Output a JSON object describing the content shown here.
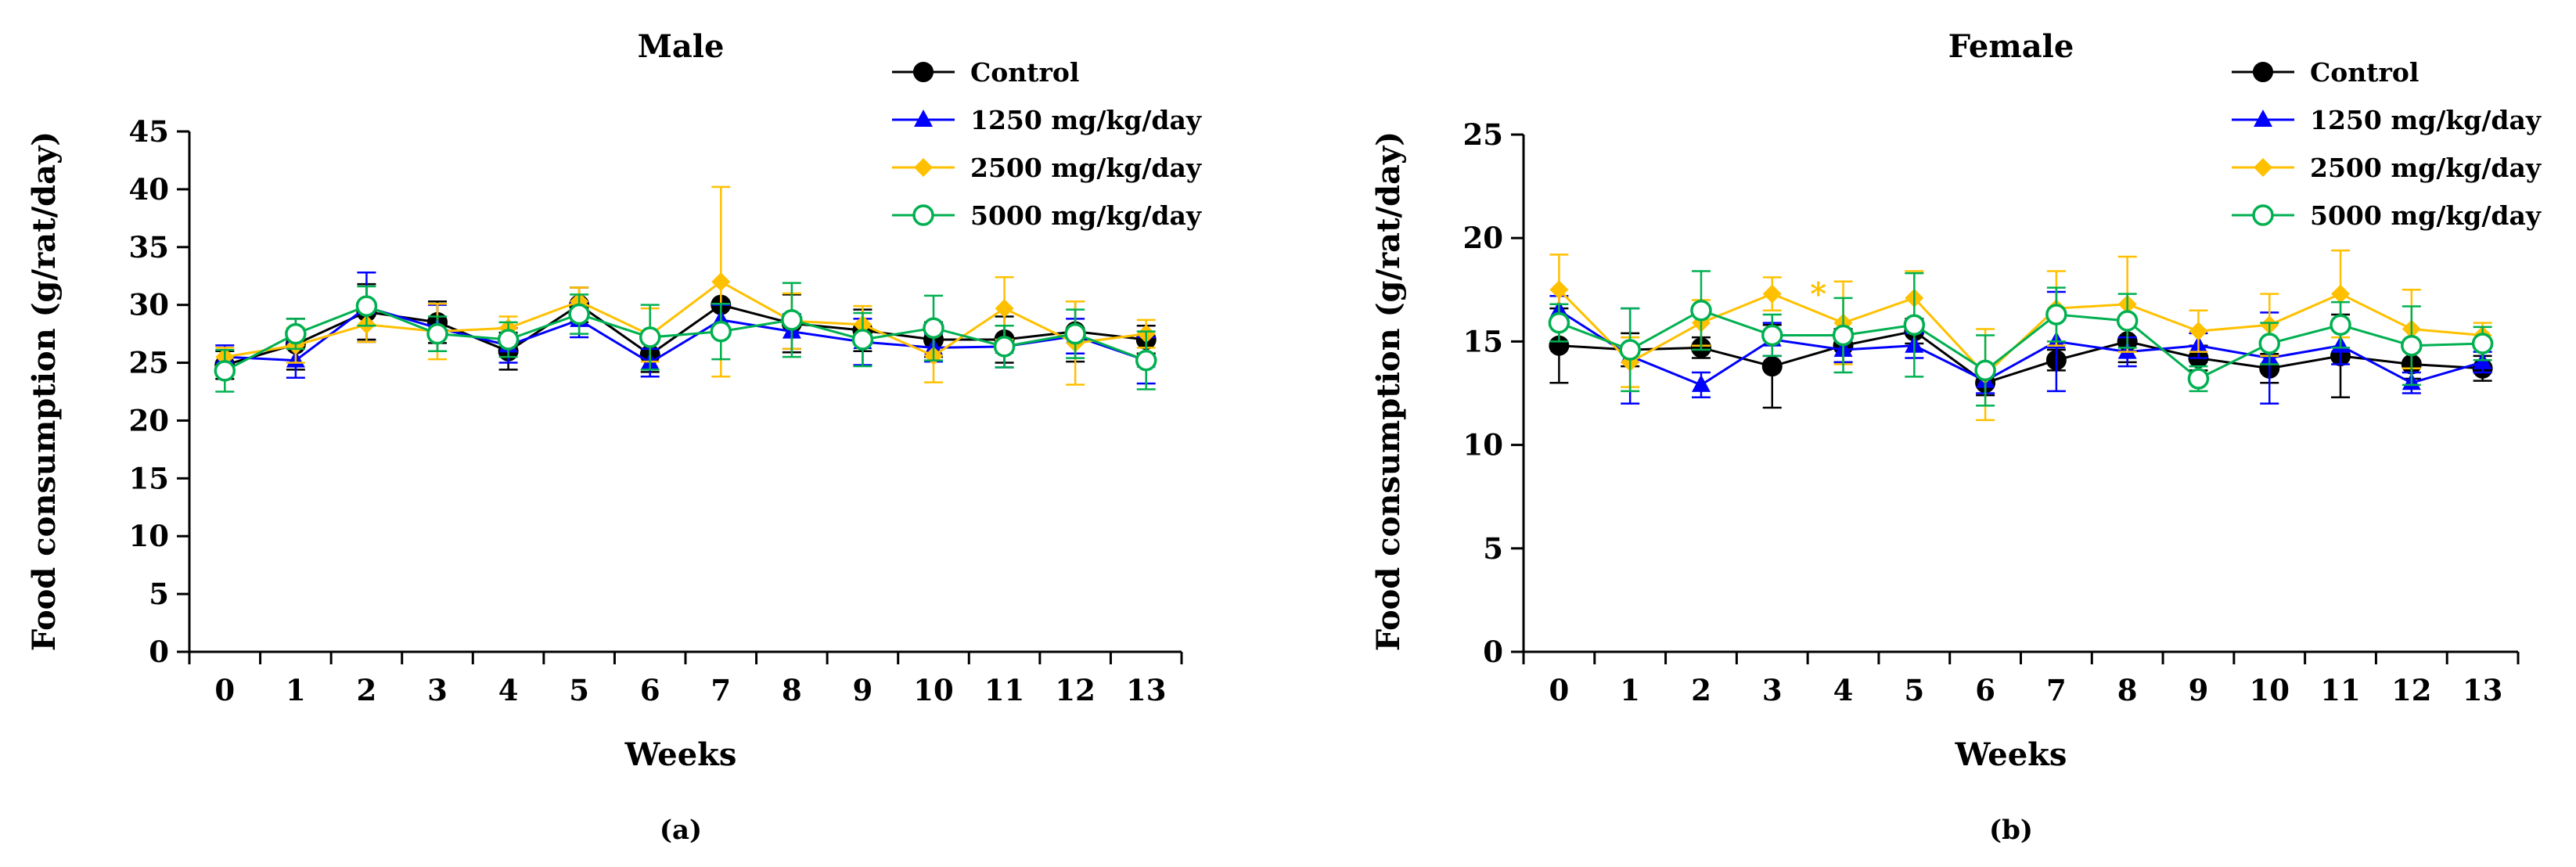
{
  "figure": {
    "labels": [
      "(a)",
      "(b)"
    ]
  },
  "chart_data": [
    {
      "type": "line",
      "title": "Male",
      "xlabel": "Weeks",
      "ylabel": "Food consumption (g/rat/day)",
      "x": [
        0,
        1,
        2,
        3,
        4,
        5,
        6,
        7,
        8,
        9,
        10,
        11,
        12,
        13
      ],
      "xlim": [
        -0.5,
        13.5
      ],
      "ylim": [
        0,
        45
      ],
      "yticks": [
        0,
        5,
        10,
        15,
        20,
        25,
        30,
        35,
        40,
        45
      ],
      "grid": false,
      "legend_position": "top-right",
      "annotations": [],
      "series": [
        {
          "name": "Control",
          "color": "#000000",
          "marker": "filled-circle",
          "values": [
            24.8,
            26.6,
            29.4,
            28.5,
            26.0,
            30.0,
            25.7,
            30.0,
            28.4,
            27.8,
            27.0,
            27.0,
            27.7,
            27.0
          ],
          "errors": [
            1.2,
            2.2,
            2.4,
            1.8,
            1.6,
            1.5,
            1.5,
            0.0,
            2.5,
            1.8,
            1.5,
            2.0,
            2.6,
            1.2
          ]
        },
        {
          "name": "1250 mg/kg/day",
          "color": "#0000ff",
          "marker": "filled-triangle",
          "values": [
            25.5,
            25.2,
            29.8,
            28.0,
            26.5,
            28.7,
            25.0,
            28.7,
            27.7,
            26.8,
            26.3,
            26.4,
            27.3,
            25.2
          ],
          "errors": [
            1.0,
            1.5,
            3.0,
            2.0,
            1.5,
            1.5,
            1.2,
            1.3,
            1.5,
            2.0,
            1.2,
            1.8,
            1.5,
            2.0
          ]
        },
        {
          "name": "2500 mg/kg/day",
          "color": "#ffc000",
          "marker": "filled-diamond",
          "values": [
            25.5,
            26.5,
            28.3,
            27.7,
            28.0,
            30.3,
            27.4,
            32.0,
            28.6,
            28.3,
            25.6,
            29.7,
            26.7,
            27.5
          ],
          "errors": [
            0.8,
            1.5,
            1.5,
            2.4,
            1.0,
            1.2,
            2.3,
            8.2,
            2.4,
            1.6,
            2.3,
            2.7,
            3.6,
            1.2
          ]
        },
        {
          "name": "5000 mg/kg/day",
          "color": "#00b050",
          "marker": "open-circle",
          "values": [
            24.3,
            27.5,
            29.9,
            27.5,
            27.0,
            29.2,
            27.2,
            27.7,
            28.7,
            27.0,
            28.0,
            26.4,
            27.5,
            25.2
          ],
          "errors": [
            1.8,
            1.3,
            1.7,
            1.5,
            1.5,
            1.7,
            2.8,
            2.4,
            3.2,
            2.3,
            2.8,
            1.8,
            2.1,
            2.5
          ]
        }
      ]
    },
    {
      "type": "line",
      "title": "Female",
      "xlabel": "Weeks",
      "ylabel": "Food consumption (g/rat/day)",
      "x": [
        0,
        1,
        2,
        3,
        4,
        5,
        6,
        7,
        8,
        9,
        10,
        11,
        12,
        13
      ],
      "xlim": [
        -0.5,
        13.5
      ],
      "ylim": [
        0,
        25
      ],
      "yticks": [
        0,
        5,
        10,
        15,
        20,
        25
      ],
      "grid": false,
      "legend_position": "top-right",
      "annotations": [
        {
          "text": "*",
          "x": 3.65,
          "y": 17.3,
          "color": "#ffc000"
        }
      ],
      "series": [
        {
          "name": "Control",
          "color": "#000000",
          "marker": "filled-circle",
          "values": [
            14.8,
            14.6,
            14.7,
            13.8,
            14.8,
            15.5,
            13.0,
            14.1,
            15.0,
            14.2,
            13.7,
            14.3,
            13.9,
            13.7
          ],
          "errors": [
            1.8,
            0.8,
            0.5,
            2.0,
            0.8,
            0.6,
            0.6,
            0.5,
            1.0,
            0.6,
            0.7,
            2.0,
            0.7,
            0.6
          ]
        },
        {
          "name": "1250 mg/kg/day",
          "color": "#0000ff",
          "marker": "filled-triangle",
          "values": [
            16.5,
            14.3,
            12.9,
            15.1,
            14.6,
            14.8,
            13.1,
            15.0,
            14.5,
            14.8,
            14.2,
            14.8,
            13.0,
            14.0
          ],
          "errors": [
            0.7,
            2.3,
            0.6,
            0.8,
            0.6,
            0.6,
            0.6,
            2.4,
            0.7,
            0.6,
            2.2,
            0.9,
            0.5,
            0.5
          ]
        },
        {
          "name": "2500 mg/kg/day",
          "color": "#ffc000",
          "marker": "filled-diamond",
          "values": [
            17.5,
            14.0,
            15.9,
            17.3,
            15.9,
            17.1,
            13.4,
            16.6,
            16.8,
            15.5,
            15.8,
            17.3,
            15.6,
            15.3
          ],
          "errors": [
            1.7,
            1.2,
            1.1,
            0.8,
            2.0,
            1.3,
            2.2,
            1.8,
            2.3,
            1.0,
            1.5,
            2.1,
            1.9,
            0.6
          ]
        },
        {
          "name": "5000 mg/kg/day",
          "color": "#00b050",
          "marker": "open-circle",
          "values": [
            15.9,
            14.6,
            16.5,
            15.3,
            15.3,
            15.8,
            13.6,
            16.3,
            16.0,
            13.2,
            14.9,
            15.8,
            14.8,
            14.9
          ],
          "errors": [
            0.9,
            2.0,
            1.9,
            1.0,
            1.8,
            2.5,
            1.7,
            1.3,
            1.3,
            0.6,
            1.0,
            1.1,
            1.9,
            0.8
          ]
        }
      ]
    }
  ]
}
